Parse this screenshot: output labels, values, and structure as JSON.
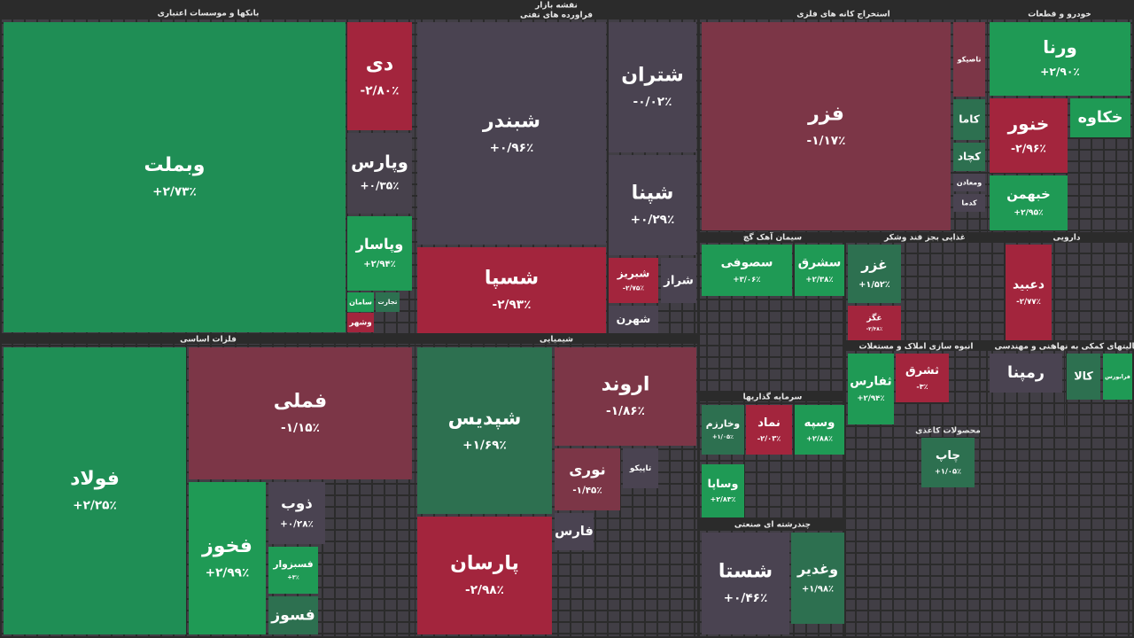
{
  "title": "نقشه بازار",
  "sectors": [
    {
      "name": "بانکها و موسسات اعتباری",
      "tiles": [
        {
          "name": "وبملت",
          "change": "+۲/۷۳٪",
          "color": "#1f8e55"
        },
        {
          "name": "دی",
          "change": "-۲/۸۰٪",
          "color": "#a3253d"
        },
        {
          "name": "وپارس",
          "change": "+۰/۳۵٪",
          "color": "#47414c"
        },
        {
          "name": "وپاسار",
          "change": "+۲/۹۴٪",
          "color": "#1f9a55"
        },
        {
          "name": "سامان",
          "color": "#1f9a55"
        },
        {
          "name": "تجارت",
          "color": "#2d7050"
        },
        {
          "name": "وشهر",
          "color": "#a3253d"
        }
      ]
    },
    {
      "name": "فراورده های نفتی",
      "tiles": [
        {
          "name": "شبندر",
          "change": "+۰/۹۶٪",
          "color": "#4a4351"
        },
        {
          "name": "شتران",
          "change": "-۰/۰۲٪",
          "color": "#4a4351"
        },
        {
          "name": "شپنا",
          "change": "+۰/۲۹٪",
          "color": "#4a4351"
        },
        {
          "name": "شسپا",
          "change": "-۲/۹۳٪",
          "color": "#a3253d"
        },
        {
          "name": "شبریز",
          "change": "-۲/۷۵٪",
          "color": "#a3253d"
        },
        {
          "name": "شراز",
          "color": "#4a4351"
        },
        {
          "name": "شهرن",
          "color": "#4a4351"
        }
      ]
    },
    {
      "name": "استخراج کانه های فلزی",
      "tiles": [
        {
          "name": "فزر",
          "change": "-۱/۱۷٪",
          "color": "#7c3647"
        },
        {
          "name": "تاصیکو",
          "color": "#7c3647"
        },
        {
          "name": "کاما",
          "color": "#2d7050"
        },
        {
          "name": "کچاد",
          "color": "#2d7050"
        },
        {
          "name": "ومعادن",
          "color": "#4a4351"
        },
        {
          "name": "کدما",
          "color": "#4a4351"
        }
      ]
    },
    {
      "name": "خودرو و قطعات",
      "tiles": [
        {
          "name": "ورنا",
          "change": "+۲/۹۰٪",
          "color": "#1f9a55"
        },
        {
          "name": "خنور",
          "change": "-۲/۹۶٪",
          "color": "#a3253d"
        },
        {
          "name": "خکاوه",
          "color": "#1f9a55"
        },
        {
          "name": "خبهمن",
          "change": "+۲/۹۵٪",
          "color": "#1f9a55"
        }
      ]
    },
    {
      "name": "فلزات اساسی",
      "tiles": [
        {
          "name": "فولاد",
          "change": "+۲/۲۵٪",
          "color": "#1f8e55"
        },
        {
          "name": "فملی",
          "change": "-۱/۱۵٪",
          "color": "#7c3647"
        },
        {
          "name": "فخوز",
          "change": "+۲/۹۹٪",
          "color": "#1f9a55"
        },
        {
          "name": "ذوب",
          "change": "+۰/۲۸٪",
          "color": "#4a4351"
        },
        {
          "name": "فسبزوار",
          "change": "+۳٪",
          "color": "#1f9a55"
        },
        {
          "name": "فسوز",
          "color": "#2d7050"
        }
      ]
    },
    {
      "name": "شیمیایی",
      "tiles": [
        {
          "name": "شپدیس",
          "change": "+۱/۶۹٪",
          "color": "#2d7050"
        },
        {
          "name": "اروند",
          "change": "-۱/۸۶٪",
          "color": "#7c3647"
        },
        {
          "name": "نوری",
          "change": "-۱/۴۵٪",
          "color": "#7c3647"
        },
        {
          "name": "پارسان",
          "change": "-۲/۹۸٪",
          "color": "#a3253d"
        },
        {
          "name": "تاپیکو",
          "color": "#4a4351"
        },
        {
          "name": "فارس",
          "color": "#4a4351"
        }
      ]
    },
    {
      "name": "سیمان آهک گچ",
      "tiles": [
        {
          "name": "سصوفی",
          "change": "+۳/۰۶٪",
          "color": "#1f9a55"
        },
        {
          "name": "سشرق",
          "change": "+۲/۳۸٪",
          "color": "#1f9a55"
        }
      ]
    },
    {
      "name": "غذایی بجز قند وشکر",
      "tiles": [
        {
          "name": "غزر",
          "change": "+۱/۵۲٪",
          "color": "#2d7050"
        },
        {
          "name": "غگز",
          "change": "-۲/۳۸٪",
          "color": "#a3253d"
        }
      ]
    },
    {
      "name": "دارویی",
      "tiles": [
        {
          "name": "دعبید",
          "change": "-۲/۷۷٪",
          "color": "#a3253d"
        }
      ]
    },
    {
      "name": "انبوه سازی املاک و مستغلات",
      "tiles": [
        {
          "name": "ثفارس",
          "change": "+۲/۹۴٪",
          "color": "#1f9a55"
        },
        {
          "name": "ثشرق",
          "change": "-۳٪",
          "color": "#a3253d"
        }
      ]
    },
    {
      "name": "سرمایه گذاریها",
      "tiles": [
        {
          "name": "وخارزم",
          "change": "+۱/۰۵٪",
          "color": "#2d7050"
        },
        {
          "name": "نماد",
          "change": "-۲/۰۳٪",
          "color": "#a3253d"
        },
        {
          "name": "وسپه",
          "change": "+۲/۸۸٪",
          "color": "#1f9a55"
        },
        {
          "name": "وساپا",
          "change": "+۲/۸۳٪",
          "color": "#1f9a55"
        }
      ]
    },
    {
      "name": "چندرشته ای صنعتی",
      "tiles": [
        {
          "name": "شستا",
          "change": "+۰/۴۶٪",
          "color": "#4a4351"
        },
        {
          "name": "وغدیر",
          "change": "+۱/۹۸٪",
          "color": "#2d7050"
        }
      ]
    },
    {
      "name": "فنی و مهندسی",
      "tiles": [
        {
          "name": "رمپنا",
          "color": "#4a4351"
        }
      ]
    },
    {
      "name": "فعالیتهای کمکی به نهاد",
      "tiles": [
        {
          "name": "کالا",
          "color": "#2d7050"
        },
        {
          "name": "فرابورس",
          "color": "#1f9a55"
        }
      ]
    },
    {
      "name": "محصولات کاغذی",
      "tiles": [
        {
          "name": "چاپ",
          "change": "+۱/۰۵٪",
          "color": "#2d7050"
        }
      ]
    }
  ]
}
